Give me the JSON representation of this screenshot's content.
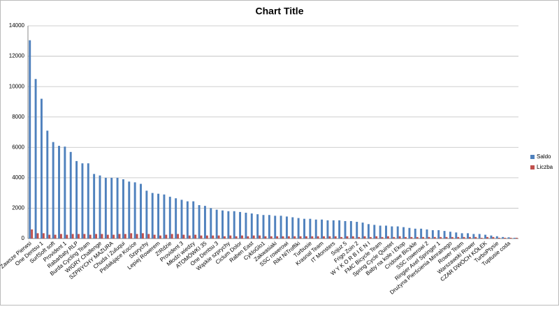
{
  "chart_data": {
    "type": "bar",
    "title": "Chart Title",
    "categories": [
      "Zawsze Pierwsi",
      null,
      "One Dentsu 1",
      null,
      "SurfSoft soft",
      null,
      "Provident 1",
      null,
      "Rabarbaty RLP",
      null,
      "Burda Cycling Team",
      null,
      "WIGRY Challenge",
      null,
      "SZPRYCHY MAZURA",
      null,
      "Chuda i Zuluqui",
      null,
      "Pedałujące Kocice",
      null,
      "Szprychy",
      null,
      "Lepiej Rowerem",
      null,
      "Z!Rdzie",
      null,
      "Provident 3",
      null,
      "Młodzi wiedzy",
      null,
      "ATOMÓWKI 35",
      null,
      "One Dentsu 3",
      null,
      "Wąskie szprychy",
      null,
      "Ciclum Dolor",
      null,
      "Raben East",
      null,
      "CykloGlo1",
      null,
      "Zakwasiaki",
      null,
      "SSC rowerowi",
      null,
      "Rikt NiTroffiki",
      null,
      "Turbusie",
      null,
      "Krasnal Team",
      null,
      "IT Monsters",
      null,
      "Sojuz 5",
      null,
      "Frigo Zoin 2",
      null,
      "W Y K O R B I E N I",
      null,
      "FMC Bicycle Team",
      null,
      "Spring Cycle Quintet",
      null,
      "Baby na kole i Ekop",
      null,
      "Cridowe Bicykle",
      null,
      "SSC rowerowi 2",
      null,
      "Ringier Axel Springer 1",
      null,
      "Drużyna Pierścienia Minralnego",
      null,
      "Rower Team",
      null,
      "Warszawski Rower",
      null,
      "CZAR DWÓCH KÓŁEK",
      null,
      "TurboPtysie",
      null,
      "Tuptusie coda",
      null
    ],
    "series": [
      {
        "name": "Saldo",
        "color": "#4f81bd",
        "values": [
          13050,
          10500,
          9200,
          7100,
          6350,
          6100,
          6050,
          5700,
          5100,
          4950,
          4950,
          4250,
          4150,
          4000,
          4000,
          4000,
          3900,
          3750,
          3700,
          3600,
          3150,
          3000,
          2950,
          2900,
          2750,
          2650,
          2550,
          2450,
          2450,
          2200,
          2150,
          2000,
          1900,
          1850,
          1800,
          1800,
          1750,
          1700,
          1650,
          1600,
          1550,
          1550,
          1500,
          1500,
          1450,
          1400,
          1350,
          1300,
          1300,
          1250,
          1250,
          1200,
          1200,
          1200,
          1150,
          1150,
          1100,
          1050,
          950,
          900,
          850,
          850,
          800,
          800,
          750,
          700,
          650,
          650,
          600,
          550,
          550,
          500,
          450,
          400,
          350,
          350,
          300,
          300,
          250,
          200,
          150,
          100,
          80,
          50
        ]
      },
      {
        "name": "Liczba",
        "color": "#c0504d",
        "values": [
          600,
          350,
          350,
          250,
          250,
          300,
          250,
          300,
          300,
          300,
          250,
          300,
          300,
          250,
          250,
          300,
          300,
          350,
          300,
          350,
          300,
          250,
          200,
          250,
          300,
          300,
          250,
          200,
          250,
          200,
          200,
          200,
          200,
          150,
          200,
          150,
          200,
          150,
          200,
          200,
          150,
          150,
          150,
          150,
          150,
          150,
          150,
          150,
          150,
          150,
          150,
          150,
          150,
          100,
          150,
          150,
          100,
          150,
          100,
          150,
          100,
          150,
          100,
          150,
          100,
          100,
          100,
          100,
          100,
          100,
          100,
          100,
          100,
          100,
          100,
          100,
          100,
          50,
          100,
          100,
          50,
          50,
          50,
          50
        ]
      }
    ],
    "ylim": [
      0,
      14000
    ],
    "yticks": [
      0,
      2000,
      4000,
      6000,
      8000,
      10000,
      12000,
      14000
    ],
    "grid": true,
    "legend": "right"
  }
}
